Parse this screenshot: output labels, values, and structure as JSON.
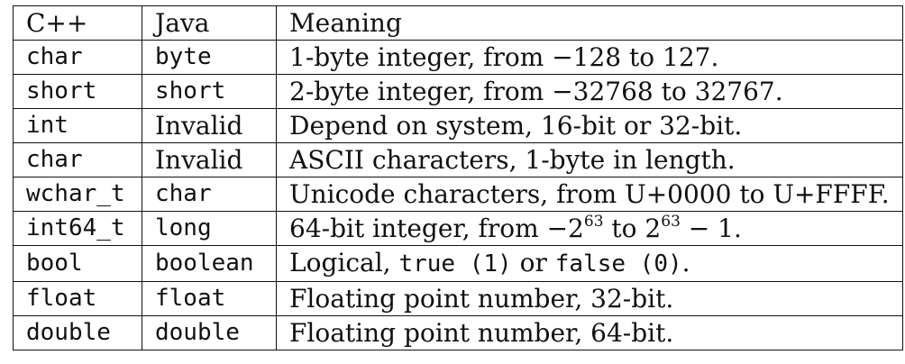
{
  "table": {
    "headers": [
      "C++",
      "Java",
      "Meaning"
    ],
    "rows": [
      {
        "cpp": "char",
        "java": "byte",
        "java_mono": true,
        "meaning": "1-byte integer, from −128 to 127."
      },
      {
        "cpp": "short",
        "java": "short",
        "java_mono": true,
        "meaning": "2-byte integer, from −32768 to 32767."
      },
      {
        "cpp": "int",
        "java": "Invalid",
        "java_mono": false,
        "meaning": "Depend on system, 16-bit or 32-bit."
      },
      {
        "cpp": "char",
        "java": "Invalid",
        "java_mono": false,
        "meaning": "ASCII characters, 1-byte in length."
      },
      {
        "cpp": "wchar_t",
        "java": "char",
        "java_mono": true,
        "meaning": "Unicode characters, from U+0000 to U+FFFF."
      },
      {
        "cpp": "int64_t",
        "java": "long",
        "java_mono": true,
        "meaning_parts": {
          "prefix": "64-bit integer, from −2",
          "exp1": "63",
          "middle": " to 2",
          "exp2": "63",
          "suffix": " − 1."
        }
      },
      {
        "cpp": "bool",
        "java": "boolean",
        "java_mono": true,
        "meaning_parts": {
          "prefix": "Logical, ",
          "code1": "true (1)",
          "middle": " or ",
          "code2": "false (0)",
          "suffix": "."
        }
      },
      {
        "cpp": "float",
        "java": "float",
        "java_mono": true,
        "meaning": "Floating point number, 32-bit."
      },
      {
        "cpp": "double",
        "java": "double",
        "java_mono": true,
        "meaning": "Floating point number, 64-bit."
      }
    ]
  }
}
